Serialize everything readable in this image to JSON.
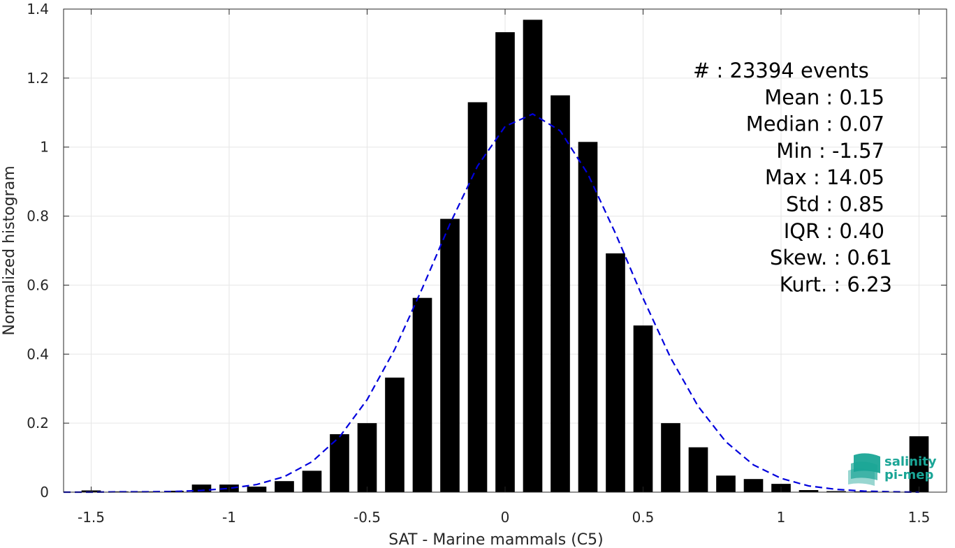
{
  "chart_data": {
    "type": "bar",
    "title": "",
    "xlabel": "SAT - Marine mammals (C5)",
    "ylabel": "Normalized histogram",
    "xlim": [
      -1.6,
      1.6
    ],
    "ylim": [
      0,
      1.4
    ],
    "xticks": [
      "-1.5",
      "-1",
      "-0.5",
      "0",
      "0.5",
      "1",
      "1.5"
    ],
    "yticks": [
      "0",
      "0.2",
      "0.4",
      "0.6",
      "0.8",
      "1",
      "1.2",
      "1.4"
    ],
    "grid": true,
    "bar_color": "#000000",
    "bins": {
      "centers": [
        -1.5,
        -1.4,
        -1.3,
        -1.2,
        -1.1,
        -1.0,
        -0.9,
        -0.8,
        -0.7,
        -0.6,
        -0.5,
        -0.4,
        -0.3,
        -0.2,
        -0.1,
        0.0,
        0.1,
        0.2,
        0.3,
        0.4,
        0.5,
        0.6,
        0.7,
        0.8,
        0.9,
        1.0,
        1.1,
        1.2,
        1.3,
        1.4,
        1.5
      ],
      "values": [
        0.005,
        0.002,
        0.002,
        0.004,
        0.022,
        0.022,
        0.016,
        0.032,
        0.062,
        0.168,
        0.2,
        0.332,
        0.563,
        0.792,
        1.13,
        1.333,
        1.369,
        1.15,
        1.015,
        0.692,
        0.483,
        0.2,
        0.13,
        0.048,
        0.038,
        0.024,
        0.006,
        0.003,
        0.002,
        0.001,
        0.162
      ]
    },
    "fit_curve": {
      "style": "dashed",
      "color": "#0000dd",
      "points": [
        [
          -1.6,
          0.0
        ],
        [
          -1.5,
          0.0
        ],
        [
          -1.4,
          0.001
        ],
        [
          -1.3,
          0.001
        ],
        [
          -1.2,
          0.002
        ],
        [
          -1.1,
          0.005
        ],
        [
          -1.0,
          0.011
        ],
        [
          -0.9,
          0.022
        ],
        [
          -0.8,
          0.045
        ],
        [
          -0.7,
          0.088
        ],
        [
          -0.6,
          0.16
        ],
        [
          -0.5,
          0.268
        ],
        [
          -0.4,
          0.414
        ],
        [
          -0.3,
          0.591
        ],
        [
          -0.2,
          0.777
        ],
        [
          -0.1,
          0.945
        ],
        [
          0.0,
          1.06
        ],
        [
          0.1,
          1.096
        ],
        [
          0.2,
          1.047
        ],
        [
          0.3,
          0.922
        ],
        [
          0.4,
          0.75
        ],
        [
          0.5,
          0.562
        ],
        [
          0.6,
          0.389
        ],
        [
          0.7,
          0.248
        ],
        [
          0.8,
          0.146
        ],
        [
          0.9,
          0.079
        ],
        [
          1.0,
          0.04
        ],
        [
          1.1,
          0.018
        ],
        [
          1.2,
          0.008
        ],
        [
          1.3,
          0.003
        ],
        [
          1.4,
          0.001
        ],
        [
          1.5,
          0.0
        ]
      ]
    },
    "stats_lines": [
      "#  : 23394 events",
      "Mean : 0.15",
      "Median : 0.07",
      "Min : -1.57",
      "Max : 14.05",
      "Std : 0.85",
      "IQR : 0.40",
      "Skew. : 0.61",
      "Kurt. : 6.23"
    ]
  },
  "logo": {
    "name": "salinity-pimep-logo",
    "line1": "salinity",
    "line2": "pi-mep",
    "color": "#1aa596"
  }
}
